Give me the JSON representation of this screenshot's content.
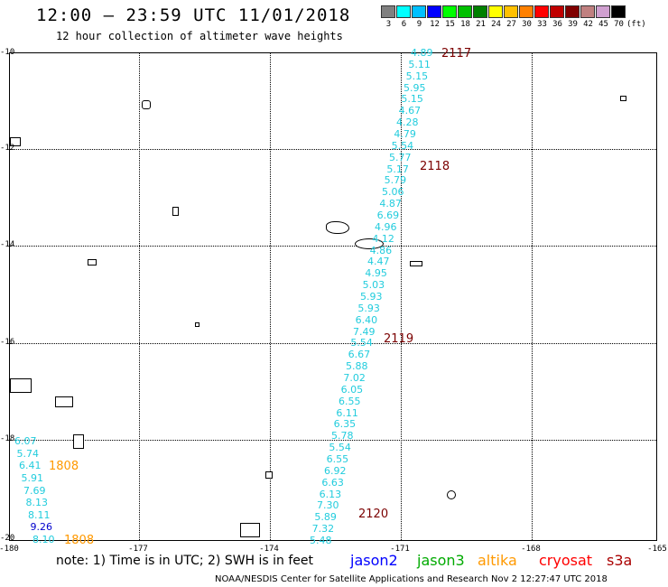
{
  "header": {
    "title": "12:00 – 23:59 UTC 11/01/2018",
    "subtitle": "12 hour collection of altimeter wave heights"
  },
  "colorbar": {
    "colors": [
      "#808080",
      "#00ffff",
      "#00c0ff",
      "#0000ff",
      "#00ff00",
      "#00c000",
      "#008000",
      "#ffff00",
      "#ffc000",
      "#ff8000",
      "#ff0000",
      "#c00000",
      "#800000",
      "#c08080",
      "#d0a0d0",
      "#000000"
    ],
    "labels": [
      "3",
      "6",
      "9",
      "12",
      "15",
      "18",
      "21",
      "24",
      "27",
      "30",
      "33",
      "36",
      "39",
      "42",
      "45",
      "70",
      "(ft)"
    ]
  },
  "axes": {
    "lat_labels": [
      "-10",
      "-12",
      "-14",
      "-16",
      "-18",
      "-20"
    ],
    "lon_labels": [
      "-180",
      "-177",
      "-174",
      "-171",
      "-168",
      "-165"
    ]
  },
  "passes": [
    "2117",
    "2118",
    "2119",
    "2120",
    "1808",
    "1808"
  ],
  "track_main": [
    "4.89",
    "5.11",
    "5.15",
    "5.95",
    "5.15",
    "4.67",
    "4.28",
    "4.79",
    "5.54",
    "5.77",
    "5.17",
    "5.79",
    "5.06",
    "4.87",
    "6.69",
    "4.96",
    "4.12",
    "4.86",
    "4.47",
    "4.95",
    "5.03",
    "5.93",
    "5.93",
    "6.40",
    "7.49",
    "5.54",
    "6.67",
    "5.88",
    "7.02",
    "6.05",
    "6.55",
    "6.11",
    "6.35",
    "5.78",
    "5.54",
    "6.55",
    "6.92",
    "6.63",
    "6.13",
    "7.30",
    "5.89",
    "7.32",
    "5.48"
  ],
  "track_west": [
    "6.07",
    "5.74",
    "6.41",
    "5.91",
    "7.69",
    "8.13",
    "8.11",
    "9.26",
    "8.10"
  ],
  "legend": {
    "note": "note: 1) Time is in UTC; 2) SWH is in feet",
    "sats": [
      "jason2",
      "jason3",
      "altika",
      "cryosat",
      "s3a"
    ]
  },
  "credit": "NOAA/NESDIS Center for Satellite Applications and Research    Nov  2 12:27:47 UTC 2018"
}
